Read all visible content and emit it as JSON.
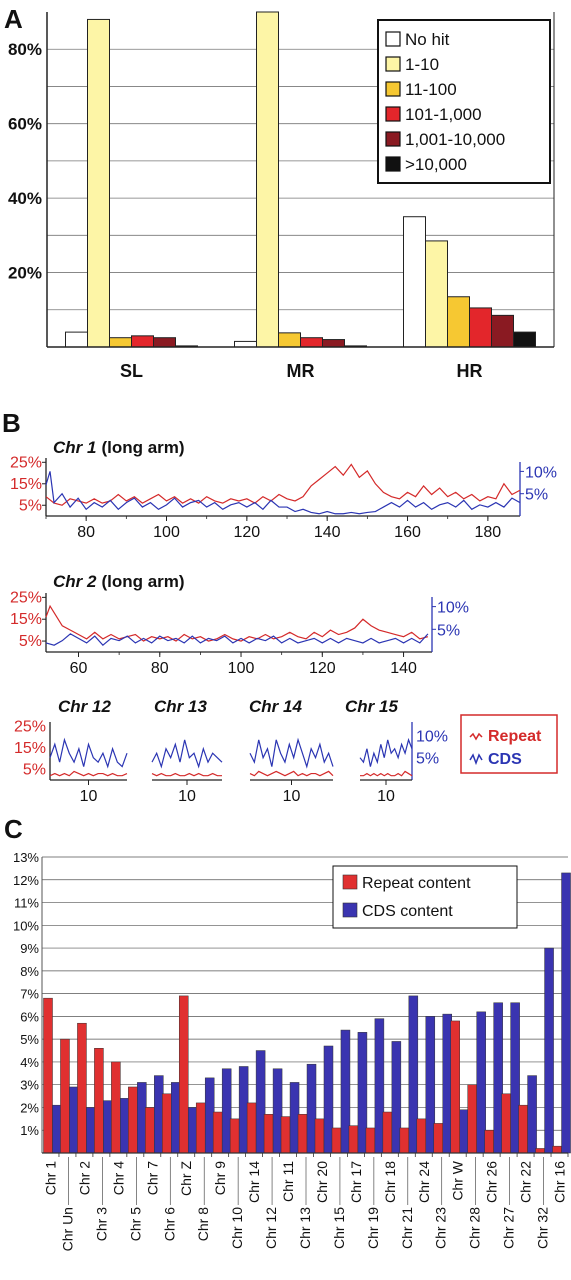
{
  "panels": {
    "a": "A",
    "b": "B",
    "c": "C"
  },
  "colors": {
    "repeat": "#d42a2a",
    "cds": "#2b35b3",
    "barRepeat": "#e03030",
    "barCds": "#3a34b0",
    "bins": [
      "#ffffff",
      "#fdf5a6",
      "#f6c832",
      "#e3262b",
      "#8a1a22",
      "#111111"
    ]
  },
  "chart_data": [
    {
      "type": "bar",
      "categories": [
        "SL",
        "MR",
        "HR"
      ],
      "yticks": [
        "20%",
        "40%",
        "60%",
        "80%"
      ],
      "ylim": [
        0,
        90
      ],
      "grid": true,
      "legend_position": "top-right",
      "series": [
        {
          "name": "No hit",
          "values": [
            4,
            1.5,
            35
          ]
        },
        {
          "name": "1-10",
          "values": [
            88,
            90,
            28.5
          ]
        },
        {
          "name": "11-100",
          "values": [
            2.5,
            3.8,
            13.5
          ]
        },
        {
          "name": "101-1,000",
          "values": [
            3,
            2.5,
            10.5
          ]
        },
        {
          "name": "1,001-10,000",
          "values": [
            2.5,
            2,
            8.5
          ]
        },
        {
          "name": ">10,000",
          "values": [
            0.3,
            0.3,
            4
          ]
        }
      ]
    },
    {
      "type": "line",
      "title": "Chr 1",
      "subtitle": "(long arm)",
      "xticks": [
        "80",
        "100",
        "120",
        "140",
        "160",
        "180"
      ],
      "xlim": [
        70,
        188
      ],
      "left_ticks": [
        "25%",
        "15%",
        "5%"
      ],
      "right_ticks": [
        "10%",
        "5%"
      ],
      "repeat_points": [
        [
          70,
          9
        ],
        [
          72,
          6
        ],
        [
          74,
          5
        ],
        [
          76,
          8
        ],
        [
          78,
          7
        ],
        [
          80,
          6
        ],
        [
          82,
          8
        ],
        [
          84,
          6
        ],
        [
          86,
          7
        ],
        [
          88,
          10
        ],
        [
          90,
          7
        ],
        [
          92,
          9
        ],
        [
          94,
          6
        ],
        [
          96,
          8
        ],
        [
          98,
          10
        ],
        [
          100,
          7
        ],
        [
          102,
          9
        ],
        [
          104,
          6
        ],
        [
          106,
          8
        ],
        [
          108,
          6
        ],
        [
          110,
          9
        ],
        [
          112,
          7
        ],
        [
          114,
          6
        ],
        [
          116,
          8
        ],
        [
          118,
          7
        ],
        [
          120,
          8
        ],
        [
          122,
          6
        ],
        [
          124,
          9
        ],
        [
          126,
          7
        ],
        [
          128,
          10
        ],
        [
          130,
          8
        ],
        [
          132,
          7
        ],
        [
          134,
          9
        ],
        [
          136,
          14
        ],
        [
          138,
          17
        ],
        [
          140,
          20
        ],
        [
          142,
          23
        ],
        [
          144,
          19
        ],
        [
          146,
          24
        ],
        [
          148,
          18
        ],
        [
          150,
          21
        ],
        [
          152,
          15
        ],
        [
          154,
          11
        ],
        [
          156,
          9
        ],
        [
          158,
          8
        ],
        [
          160,
          11
        ],
        [
          162,
          9
        ],
        [
          164,
          14
        ],
        [
          166,
          10
        ],
        [
          168,
          13
        ],
        [
          170,
          9
        ],
        [
          172,
          11
        ],
        [
          174,
          8
        ],
        [
          176,
          10
        ],
        [
          178,
          7
        ],
        [
          180,
          9
        ],
        [
          182,
          8
        ],
        [
          184,
          15
        ],
        [
          186,
          10
        ],
        [
          188,
          12
        ]
      ],
      "cds_points": [
        [
          70,
          7
        ],
        [
          71,
          10
        ],
        [
          72,
          3
        ],
        [
          74,
          5
        ],
        [
          76,
          2
        ],
        [
          78,
          4
        ],
        [
          80,
          1.5
        ],
        [
          82,
          3
        ],
        [
          84,
          2
        ],
        [
          86,
          3.5
        ],
        [
          88,
          1.5
        ],
        [
          90,
          3
        ],
        [
          92,
          4
        ],
        [
          94,
          2
        ],
        [
          96,
          3
        ],
        [
          98,
          1.5
        ],
        [
          100,
          2.5
        ],
        [
          102,
          4
        ],
        [
          104,
          2
        ],
        [
          106,
          3
        ],
        [
          108,
          3.5
        ],
        [
          110,
          2
        ],
        [
          112,
          3
        ],
        [
          114,
          1.5
        ],
        [
          116,
          2.5
        ],
        [
          118,
          3
        ],
        [
          120,
          2
        ],
        [
          122,
          3
        ],
        [
          124,
          1.5
        ],
        [
          126,
          3.5
        ],
        [
          128,
          2
        ],
        [
          130,
          2
        ],
        [
          132,
          1
        ],
        [
          134,
          1.5
        ],
        [
          136,
          0.8
        ],
        [
          138,
          0.5
        ],
        [
          140,
          1
        ],
        [
          142,
          0.5
        ],
        [
          144,
          0.5
        ],
        [
          146,
          0.8
        ],
        [
          148,
          0.5
        ],
        [
          150,
          0.8
        ],
        [
          152,
          1
        ],
        [
          154,
          2
        ],
        [
          156,
          3
        ],
        [
          158,
          2
        ],
        [
          160,
          3.5
        ],
        [
          162,
          2
        ],
        [
          164,
          3
        ],
        [
          166,
          1.5
        ],
        [
          168,
          2.5
        ],
        [
          170,
          3
        ],
        [
          172,
          2
        ],
        [
          174,
          3.5
        ],
        [
          176,
          1.5
        ],
        [
          178,
          2.5
        ],
        [
          180,
          2
        ],
        [
          182,
          3
        ],
        [
          184,
          2
        ],
        [
          186,
          4
        ],
        [
          188,
          3
        ]
      ]
    },
    {
      "type": "line",
      "title": "Chr 2",
      "subtitle": "(long arm)",
      "xticks": [
        "60",
        "80",
        "100",
        "120",
        "140"
      ],
      "xlim": [
        52,
        147
      ],
      "left_ticks": [
        "25%",
        "15%",
        "5%"
      ],
      "right_ticks": [
        "10%",
        "5%"
      ],
      "repeat_points": [
        [
          52,
          16
        ],
        [
          53,
          21
        ],
        [
          54,
          18
        ],
        [
          56,
          12
        ],
        [
          58,
          10
        ],
        [
          60,
          8
        ],
        [
          62,
          6
        ],
        [
          64,
          9
        ],
        [
          66,
          6
        ],
        [
          68,
          8
        ],
        [
          70,
          6
        ],
        [
          72,
          7
        ],
        [
          74,
          8
        ],
        [
          76,
          5
        ],
        [
          78,
          7
        ],
        [
          80,
          6
        ],
        [
          82,
          7
        ],
        [
          84,
          5
        ],
        [
          86,
          8
        ],
        [
          88,
          6
        ],
        [
          90,
          7
        ],
        [
          92,
          5
        ],
        [
          94,
          6
        ],
        [
          96,
          8
        ],
        [
          98,
          6
        ],
        [
          100,
          5
        ],
        [
          102,
          7
        ],
        [
          104,
          6
        ],
        [
          106,
          8
        ],
        [
          108,
          6
        ],
        [
          110,
          7
        ],
        [
          112,
          9
        ],
        [
          114,
          7
        ],
        [
          116,
          6
        ],
        [
          118,
          9
        ],
        [
          120,
          7
        ],
        [
          122,
          10
        ],
        [
          124,
          8
        ],
        [
          126,
          9
        ],
        [
          128,
          11
        ],
        [
          130,
          15
        ],
        [
          132,
          12
        ],
        [
          134,
          10
        ],
        [
          136,
          9
        ],
        [
          138,
          8
        ],
        [
          140,
          7
        ],
        [
          142,
          9
        ],
        [
          144,
          6
        ],
        [
          146,
          7
        ]
      ],
      "cds_points": [
        [
          52,
          2
        ],
        [
          54,
          1.5
        ],
        [
          56,
          2.5
        ],
        [
          58,
          4
        ],
        [
          60,
          3
        ],
        [
          62,
          2
        ],
        [
          64,
          3.5
        ],
        [
          66,
          1.5
        ],
        [
          68,
          3
        ],
        [
          70,
          2.5
        ],
        [
          72,
          3.5
        ],
        [
          74,
          2
        ],
        [
          76,
          3
        ],
        [
          78,
          2
        ],
        [
          80,
          3.5
        ],
        [
          82,
          2.5
        ],
        [
          84,
          3
        ],
        [
          86,
          2
        ],
        [
          88,
          3.5
        ],
        [
          90,
          2
        ],
        [
          92,
          3
        ],
        [
          94,
          2.5
        ],
        [
          96,
          3.5
        ],
        [
          98,
          2
        ],
        [
          100,
          3
        ],
        [
          102,
          2
        ],
        [
          104,
          3
        ],
        [
          106,
          2.5
        ],
        [
          108,
          3.5
        ],
        [
          110,
          2
        ],
        [
          112,
          3
        ],
        [
          114,
          2
        ],
        [
          116,
          2.5
        ],
        [
          118,
          3
        ],
        [
          120,
          2
        ],
        [
          122,
          3
        ],
        [
          124,
          2
        ],
        [
          126,
          3
        ],
        [
          128,
          2.5
        ],
        [
          130,
          2
        ],
        [
          132,
          3
        ],
        [
          134,
          2
        ],
        [
          136,
          2.5
        ],
        [
          138,
          3
        ],
        [
          140,
          2
        ],
        [
          142,
          3
        ],
        [
          144,
          2
        ],
        [
          146,
          4
        ]
      ]
    },
    {
      "type": "line",
      "titles": [
        "Chr 12",
        "Chr 13",
        "Chr 14",
        "Chr 15"
      ],
      "xticks": [
        "10",
        "10",
        "10",
        "10"
      ],
      "left_ticks": [
        "25%",
        "15%",
        "5%"
      ],
      "right_ticks": [
        "10%",
        "5%"
      ],
      "legend": [
        "Repeat",
        "CDS"
      ],
      "mini_repeat": [
        [
          2,
          3,
          2,
          3,
          2,
          4,
          3,
          2,
          3,
          2,
          3,
          3,
          2,
          3,
          2,
          2,
          3
        ],
        [
          3,
          2,
          3,
          2,
          2,
          3,
          2,
          2,
          3,
          2,
          3,
          2,
          2,
          3,
          2,
          2
        ],
        [
          3,
          2,
          4,
          3,
          2,
          3,
          4,
          3,
          2,
          3,
          4,
          2,
          3,
          2,
          3,
          3,
          2,
          3,
          4,
          2
        ],
        [
          2,
          2,
          3,
          2,
          3,
          2,
          3,
          2,
          3,
          2,
          2,
          3,
          2,
          4,
          3,
          2
        ]
      ],
      "mini_cds": [
        [
          5,
          8,
          4,
          9,
          6,
          4,
          7,
          3,
          8,
          5,
          4,
          6,
          3,
          7,
          4,
          3,
          6
        ],
        [
          4,
          6,
          3,
          7,
          5,
          8,
          4,
          9,
          5,
          6,
          3,
          7,
          4,
          6,
          5,
          4
        ],
        [
          6,
          4,
          9,
          5,
          7,
          3,
          9,
          6,
          4,
          8,
          5,
          9,
          6,
          3,
          7,
          5,
          8,
          4,
          6,
          3
        ],
        [
          5,
          4,
          7,
          3,
          6,
          4,
          8,
          5,
          9,
          6,
          7,
          5,
          8,
          6,
          9,
          7
        ]
      ]
    },
    {
      "type": "bar",
      "categories": [
        "Chr 1",
        "Chr Un",
        "Chr 2",
        "Chr 3",
        "Chr 4",
        "Chr 5",
        "Chr 7",
        "Chr 6",
        "Chr Z",
        "Chr 8",
        "Chr 9",
        "Chr 10",
        "Chr 14",
        "Chr 12",
        "Chr 11",
        "Chr 13",
        "Chr 20",
        "Chr 15",
        "Chr 17",
        "Chr 19",
        "Chr 18",
        "Chr 21",
        "Chr 24",
        "Chr 23",
        "Chr W",
        "Chr 28",
        "Chr 26",
        "Chr 27",
        "Chr 22",
        "Chr 32",
        "Chr 16"
      ],
      "ylim": [
        0,
        13
      ],
      "yticks": [
        "1%",
        "2%",
        "3%",
        "4%",
        "5%",
        "6%",
        "7%",
        "8%",
        "9%",
        "10%",
        "11%",
        "12%",
        "13%"
      ],
      "grid": true,
      "legend_position": "top-right",
      "series": [
        {
          "name": "Repeat content",
          "values": [
            6.8,
            5.0,
            5.7,
            4.6,
            4.0,
            2.9,
            2.0,
            2.6,
            6.9,
            2.2,
            1.8,
            1.5,
            2.2,
            1.7,
            1.6,
            1.7,
            1.5,
            1.1,
            1.2,
            1.1,
            1.8,
            1.1,
            1.5,
            1.3,
            5.8,
            3.0,
            1.0,
            2.6,
            2.1,
            0.2,
            0.3
          ]
        },
        {
          "name": "CDS content",
          "values": [
            2.1,
            2.9,
            2.0,
            2.3,
            2.4,
            3.1,
            3.4,
            3.1,
            2.0,
            3.3,
            3.7,
            3.8,
            4.5,
            3.7,
            3.1,
            3.9,
            4.7,
            5.4,
            5.3,
            5.9,
            4.9,
            6.9,
            6.0,
            6.1,
            1.9,
            6.2,
            6.6,
            6.6,
            3.4,
            9.0,
            12.3
          ]
        }
      ]
    }
  ]
}
